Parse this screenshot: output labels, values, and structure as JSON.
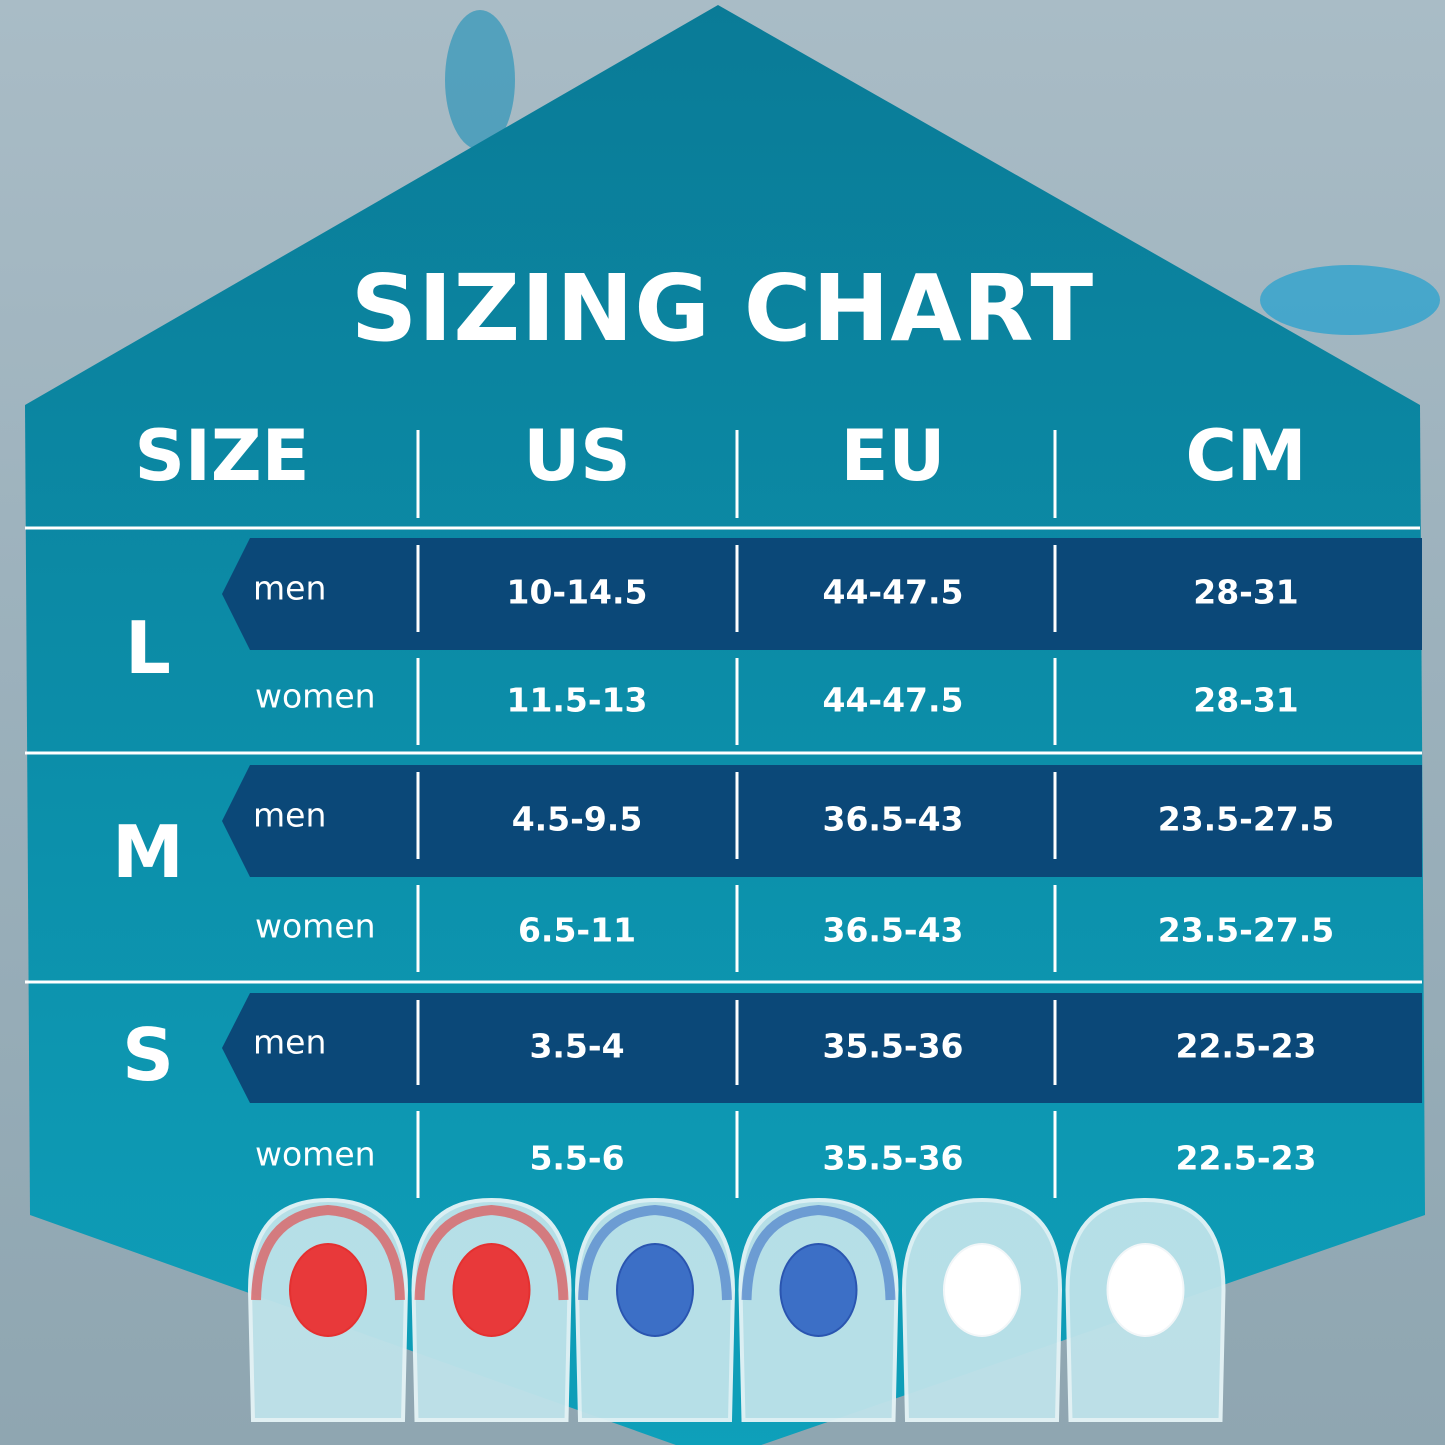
{
  "title": "SIZING CHART",
  "headers": [
    "SIZE",
    "US",
    "EU",
    "CM"
  ],
  "colors": {
    "hexagon_top": "#0a7b97",
    "hexagon_bottom": "#0ea0ba",
    "men_band": "#0b4878",
    "text": "#ffffff"
  },
  "sizes": [
    {
      "size": "L",
      "rows": [
        {
          "gender": "men",
          "us": "10-14.5",
          "eu": "44-47.5",
          "cm": "28-31"
        },
        {
          "gender": "women",
          "us": "11.5-13",
          "eu": "44-47.5",
          "cm": "28-31"
        }
      ]
    },
    {
      "size": "M",
      "rows": [
        {
          "gender": "men",
          "us": "4.5-9.5",
          "eu": "36.5-43",
          "cm": "23.5-27.5"
        },
        {
          "gender": "women",
          "us": "6.5-11",
          "eu": "36.5-43",
          "cm": "23.5-27.5"
        }
      ]
    },
    {
      "size": "S",
      "rows": [
        {
          "gender": "men",
          "us": "3.5-4",
          "eu": "35.5-36",
          "cm": "22.5-23"
        },
        {
          "gender": "women",
          "us": "5.5-6",
          "eu": "35.5-36",
          "cm": "22.5-23"
        }
      ]
    }
  ],
  "products": [
    {
      "pad_color": "red"
    },
    {
      "pad_color": "red"
    },
    {
      "pad_color": "blue"
    },
    {
      "pad_color": "blue"
    },
    {
      "pad_color": "white"
    },
    {
      "pad_color": "white"
    }
  ]
}
